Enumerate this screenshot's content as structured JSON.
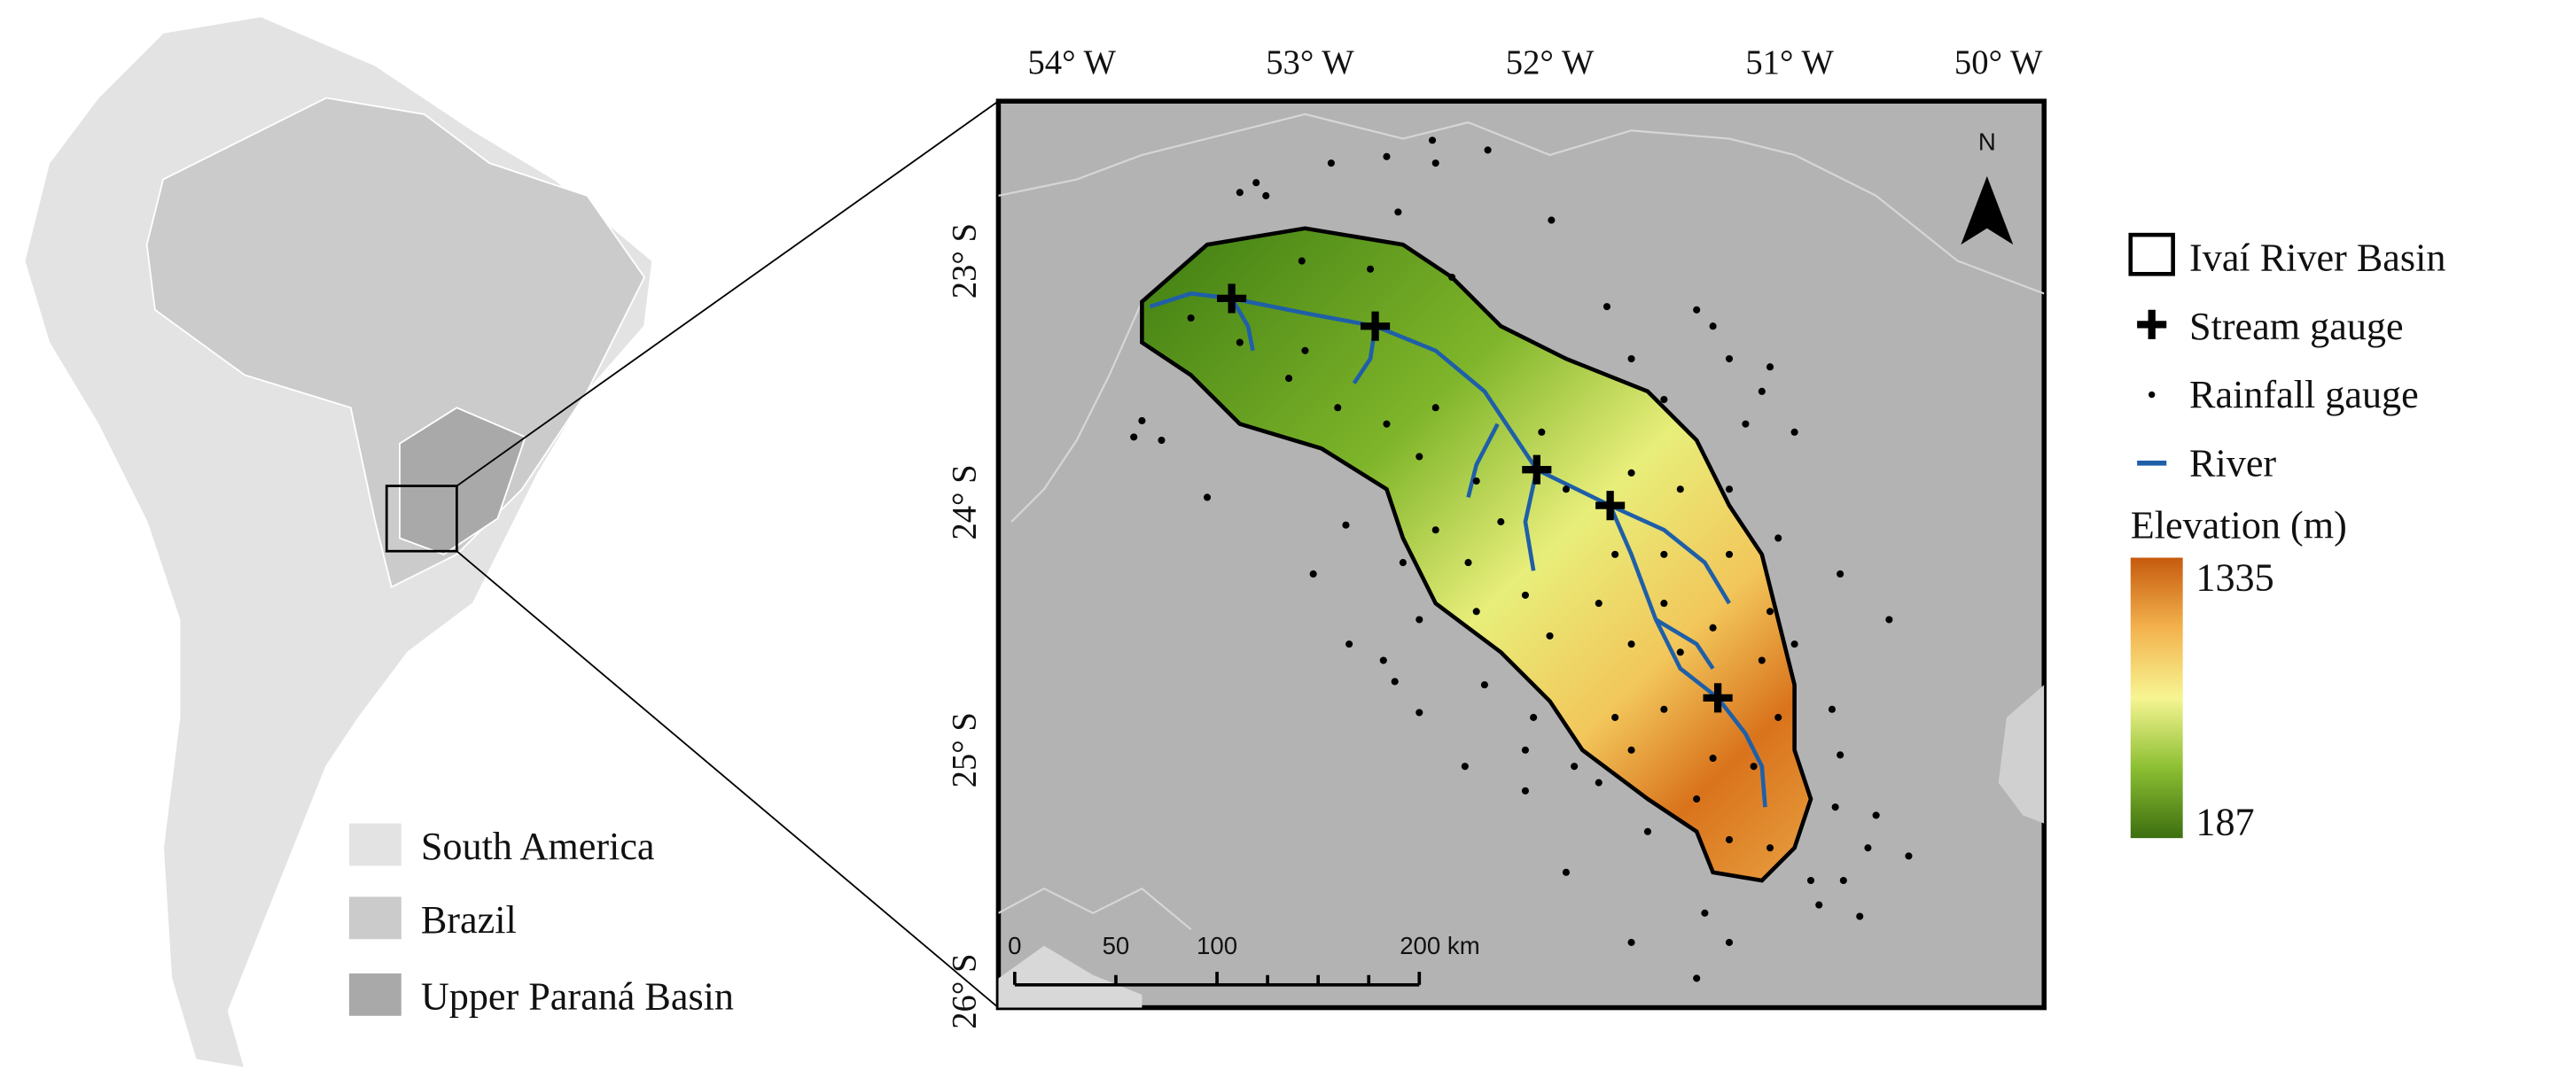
{
  "lon_labels": [
    "54° W",
    "53° W",
    "52° W",
    "51° W",
    "50° W"
  ],
  "lat_labels": [
    "23° S",
    "24° S",
    "25° S",
    "26° S"
  ],
  "inset_legend": {
    "items": [
      "South America",
      "Brazil",
      "Upper Paraná Basin"
    ]
  },
  "legend": {
    "items": [
      "Ivaí River Basin",
      "Stream gauge",
      "Rainfall gauge",
      "River"
    ],
    "elevation": {
      "title": "Elevation (m)",
      "max": 1335,
      "min": 187
    }
  },
  "scale_bar": {
    "labels": [
      "0",
      "50",
      "100",
      "200 km"
    ]
  },
  "north_arrow": "N"
}
